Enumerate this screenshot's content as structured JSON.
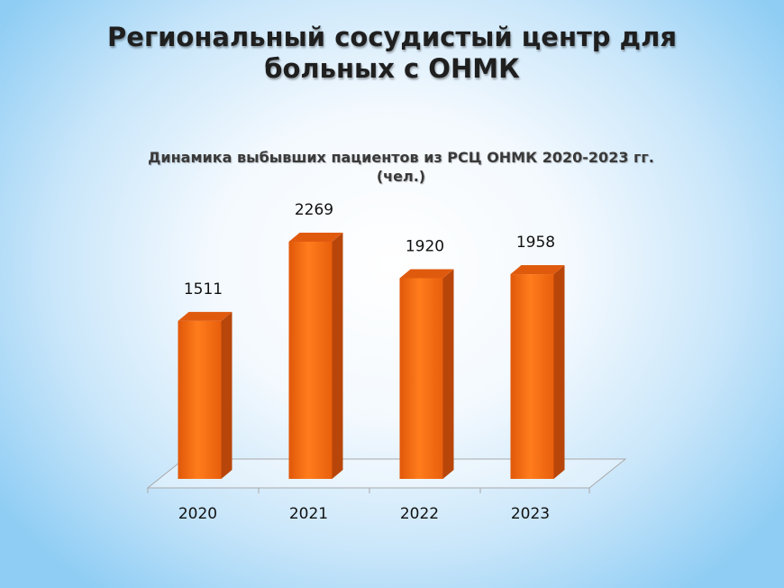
{
  "slide": {
    "title_line1": "Региональный сосудистый центр для",
    "title_line2": "больных с ОНМК"
  },
  "colors": {
    "bar_front": "#f56a10",
    "bar_side": "#b8460a",
    "bar_top": "#e05a0e"
  },
  "chart_data": {
    "type": "bar",
    "title_line1": "Динамика выбывших пациентов из РСЦ ОНМК 2020-2023 гг.",
    "title_line2": "(чел.)",
    "categories": [
      "2020",
      "2021",
      "2022",
      "2023"
    ],
    "values": [
      1511,
      2269,
      1920,
      1958
    ],
    "data_labels": [
      "1511",
      "2269",
      "1920",
      "1958"
    ],
    "ylim": [
      0,
      2269
    ],
    "grid": false,
    "legend": "none",
    "style": "3d-column"
  }
}
